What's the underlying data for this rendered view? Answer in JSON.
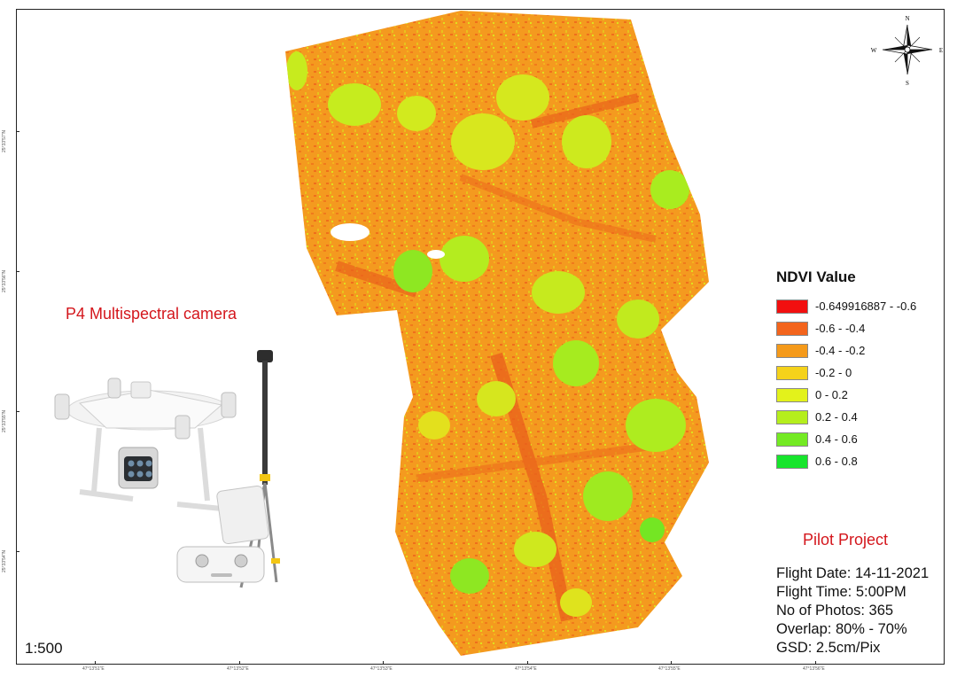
{
  "map": {
    "scale": "1:500",
    "lat_ticks": [
      "25°33'57\"N",
      "25°33'56\"N",
      "25°33'55\"N",
      "25°33'54\"N"
    ],
    "lon_ticks": [
      "47°13'51\"E",
      "47°13'52\"E",
      "47°13'53\"E",
      "47°13'54\"E",
      "47°13'55\"E",
      "47°13'56\"E"
    ]
  },
  "compass": {
    "n": "N",
    "s": "S",
    "e": "E",
    "w": "W"
  },
  "camera": {
    "title": "P4 Multispectral camera"
  },
  "legend": {
    "title": "NDVI Value",
    "items": [
      {
        "label": "-0.649916887 - -0.6",
        "color": "#f20f0f"
      },
      {
        "label": "-0.6 - -0.4",
        "color": "#f3641c"
      },
      {
        "label": "-0.4 - -0.2",
        "color": "#f59a1a"
      },
      {
        "label": "-0.2 - 0",
        "color": "#f5d21a"
      },
      {
        "label": "0 - 0.2",
        "color": "#e3f21b"
      },
      {
        "label": "0.2 - 0.4",
        "color": "#b5ee1d"
      },
      {
        "label": "0.4 - 0.6",
        "color": "#74ea23"
      },
      {
        "label": "0.6 - 0.8",
        "color": "#17e52c"
      }
    ]
  },
  "project": {
    "title": "Pilot Project",
    "flight_date": "Flight Date: 14-11-2021",
    "flight_time": "Flight Time: 5:00PM",
    "photos": "No of Photos: 365",
    "overlap": "Overlap: 80% - 70%",
    "gsd": "GSD: 2.5cm/Pix"
  }
}
